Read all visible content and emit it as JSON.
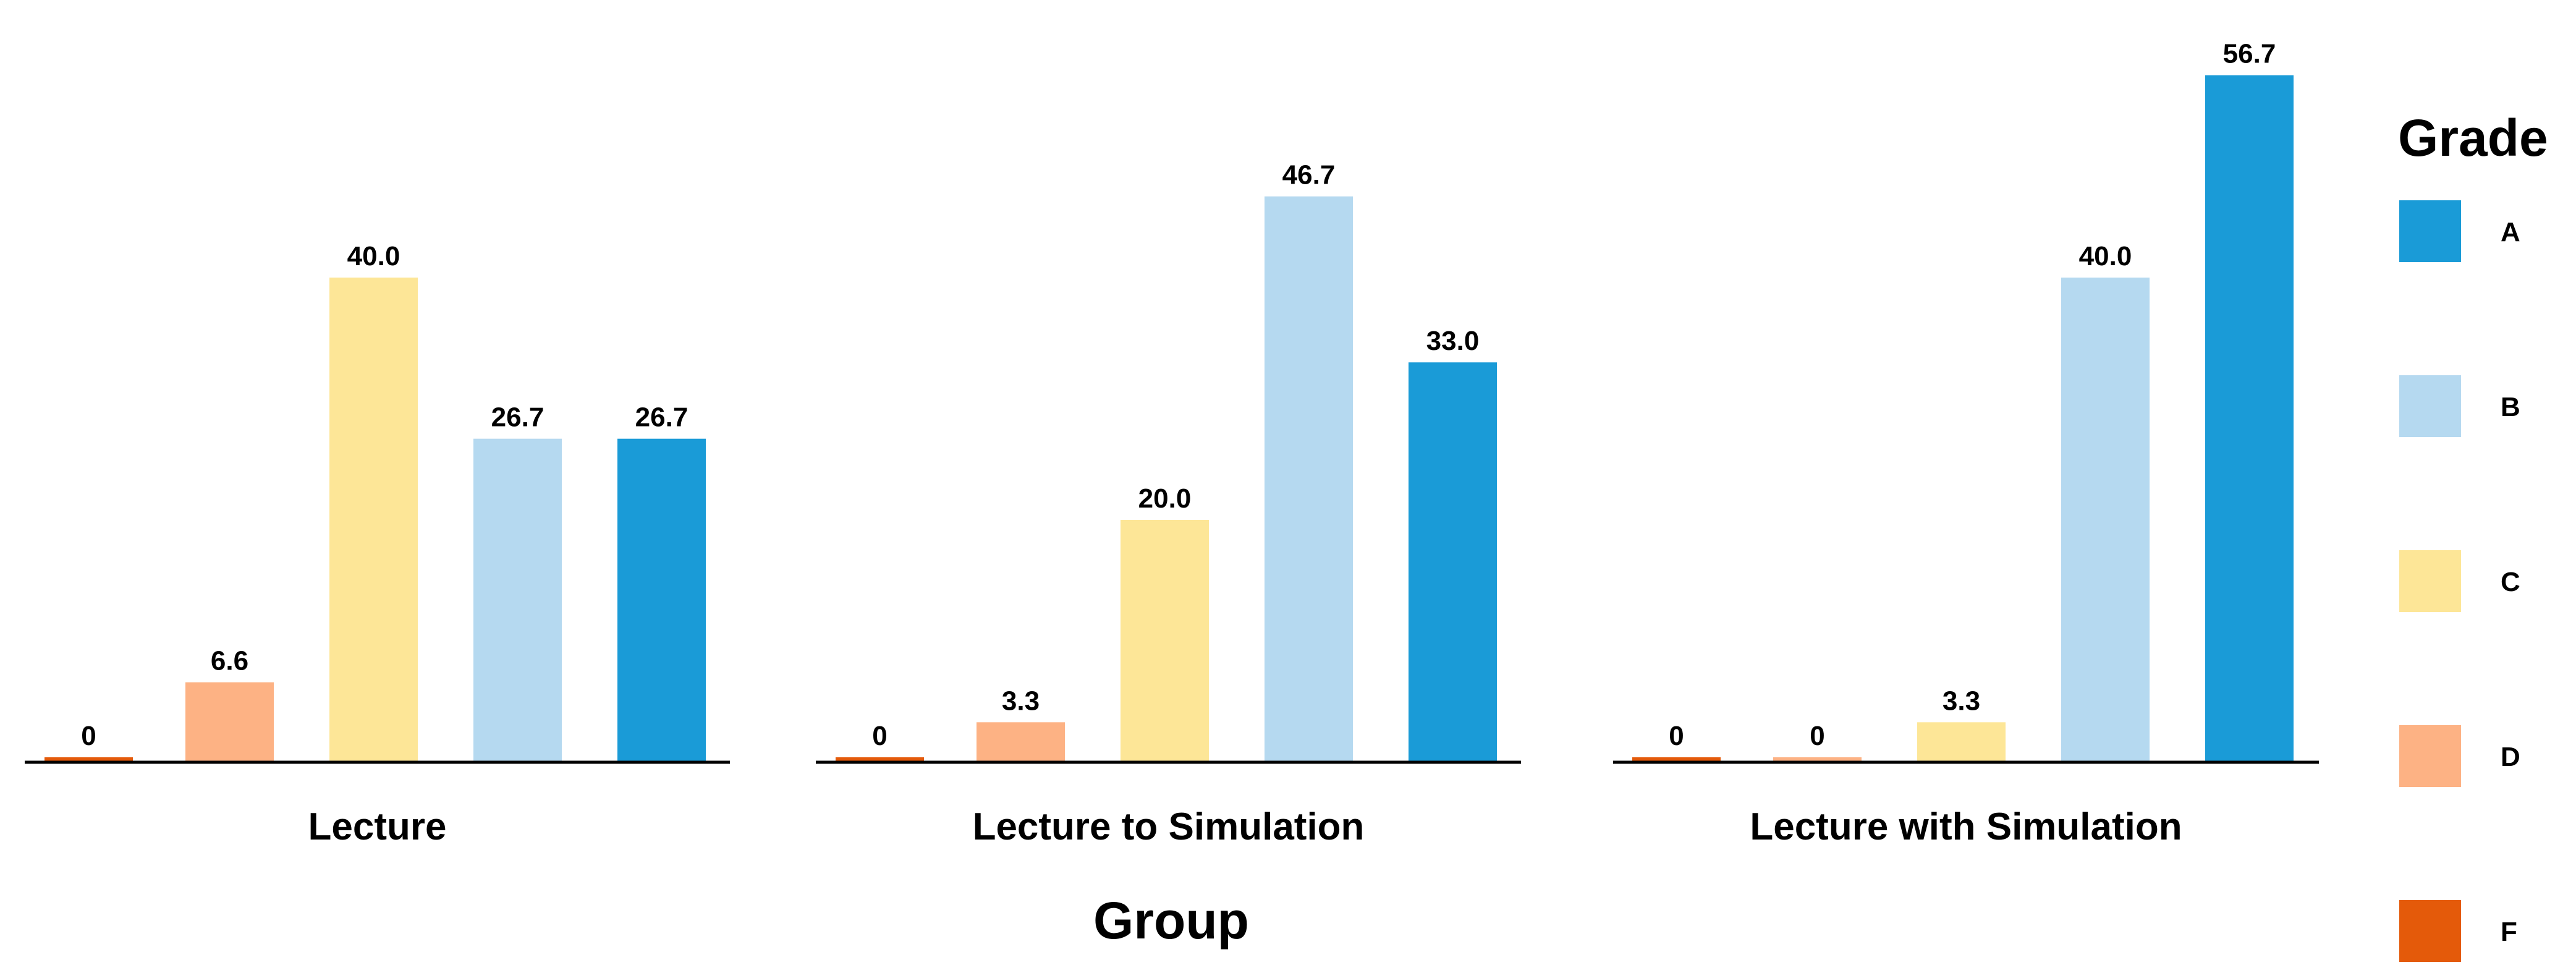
{
  "chart_data": {
    "type": "bar",
    "title": "",
    "xlabel": "Group",
    "ylabel": "",
    "ylim": [
      0,
      60
    ],
    "grid": false,
    "legend": {
      "title": "Grade",
      "position": "right",
      "entries": [
        "A",
        "B",
        "C",
        "D",
        "F"
      ]
    },
    "categories": [
      "Lecture",
      "Lecture to Simulation",
      "Lecture with Simulation"
    ],
    "grades": [
      "F",
      "D",
      "C",
      "B",
      "A"
    ],
    "colors": {
      "A": "#1a9bd7",
      "B": "#b5d9f0",
      "C": "#fde697",
      "D": "#fdb284",
      "F": "#e45a0a"
    },
    "groups": [
      {
        "name": "Lecture",
        "values": [
          0,
          6.6,
          40.0,
          26.7,
          26.7
        ],
        "labels": [
          "0",
          "6.6",
          "40.0",
          "26.7",
          "26.7"
        ]
      },
      {
        "name": "Lecture to Simulation",
        "values": [
          0,
          3.3,
          20.0,
          46.7,
          33.0
        ],
        "labels": [
          "0",
          "3.3",
          "20.0",
          "46.7",
          "33.0"
        ]
      },
      {
        "name": "Lecture with Simulation",
        "values": [
          0,
          0,
          3.3,
          40.0,
          56.7
        ],
        "labels": [
          "0",
          "0",
          "3.3",
          "40.0",
          "56.7"
        ]
      }
    ]
  }
}
